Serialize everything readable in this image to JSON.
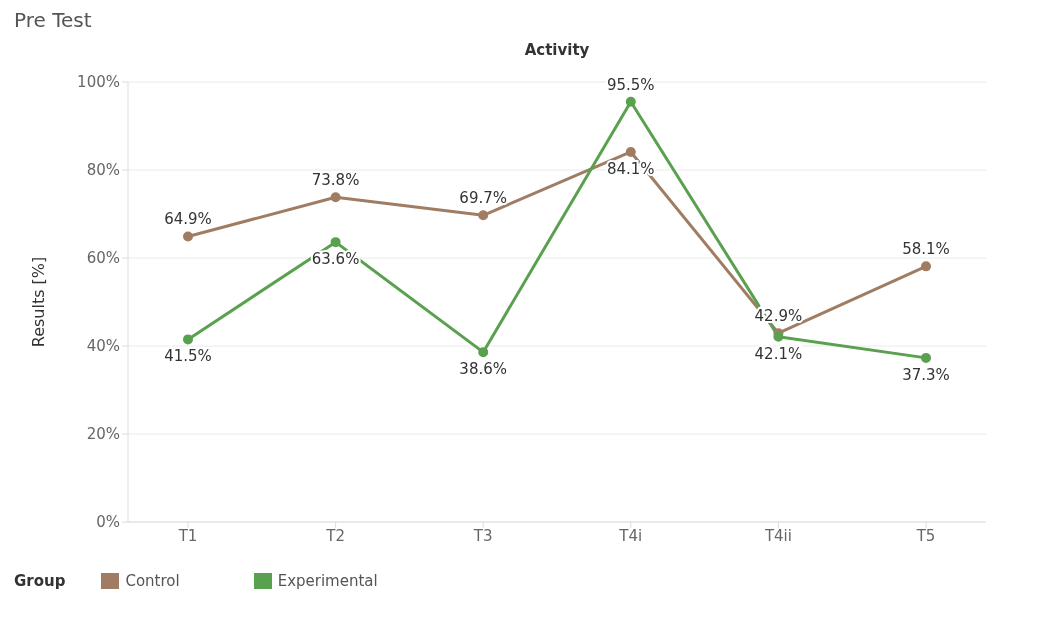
{
  "chart_data": {
    "type": "line",
    "title": "Pre Test",
    "xlabel": "Activity",
    "ylabel": "Results [%]",
    "legend_title": "Group",
    "legend": "bottom left",
    "grid": "y",
    "marker": "circle",
    "line_style": "solid",
    "categories": [
      "T1",
      "T2",
      "T3",
      "T4i",
      "T4ii",
      "T5"
    ],
    "ylim": [
      0,
      100
    ],
    "yticks": [
      {
        "value": 0,
        "label": "0%"
      },
      {
        "value": 20,
        "label": "20%"
      },
      {
        "value": 40,
        "label": "40%"
      },
      {
        "value": 60,
        "label": "60%"
      },
      {
        "value": 80,
        "label": "80%"
      },
      {
        "value": 100,
        "label": "100%"
      }
    ],
    "series": [
      {
        "name": "Control",
        "color": "#a07d62",
        "values": [
          64.9,
          73.8,
          69.7,
          84.1,
          42.9,
          58.1
        ],
        "value_labels": [
          "64.9%",
          "73.8%",
          "69.7%",
          "84.1%",
          "42.9%",
          "58.1%"
        ]
      },
      {
        "name": "Experimental",
        "color": "#59a14f",
        "values": [
          41.5,
          63.6,
          38.6,
          95.5,
          42.1,
          37.3
        ],
        "value_labels": [
          "41.5%",
          "63.6%",
          "38.6%",
          "95.5%",
          "42.1%",
          "37.3%"
        ]
      }
    ]
  }
}
